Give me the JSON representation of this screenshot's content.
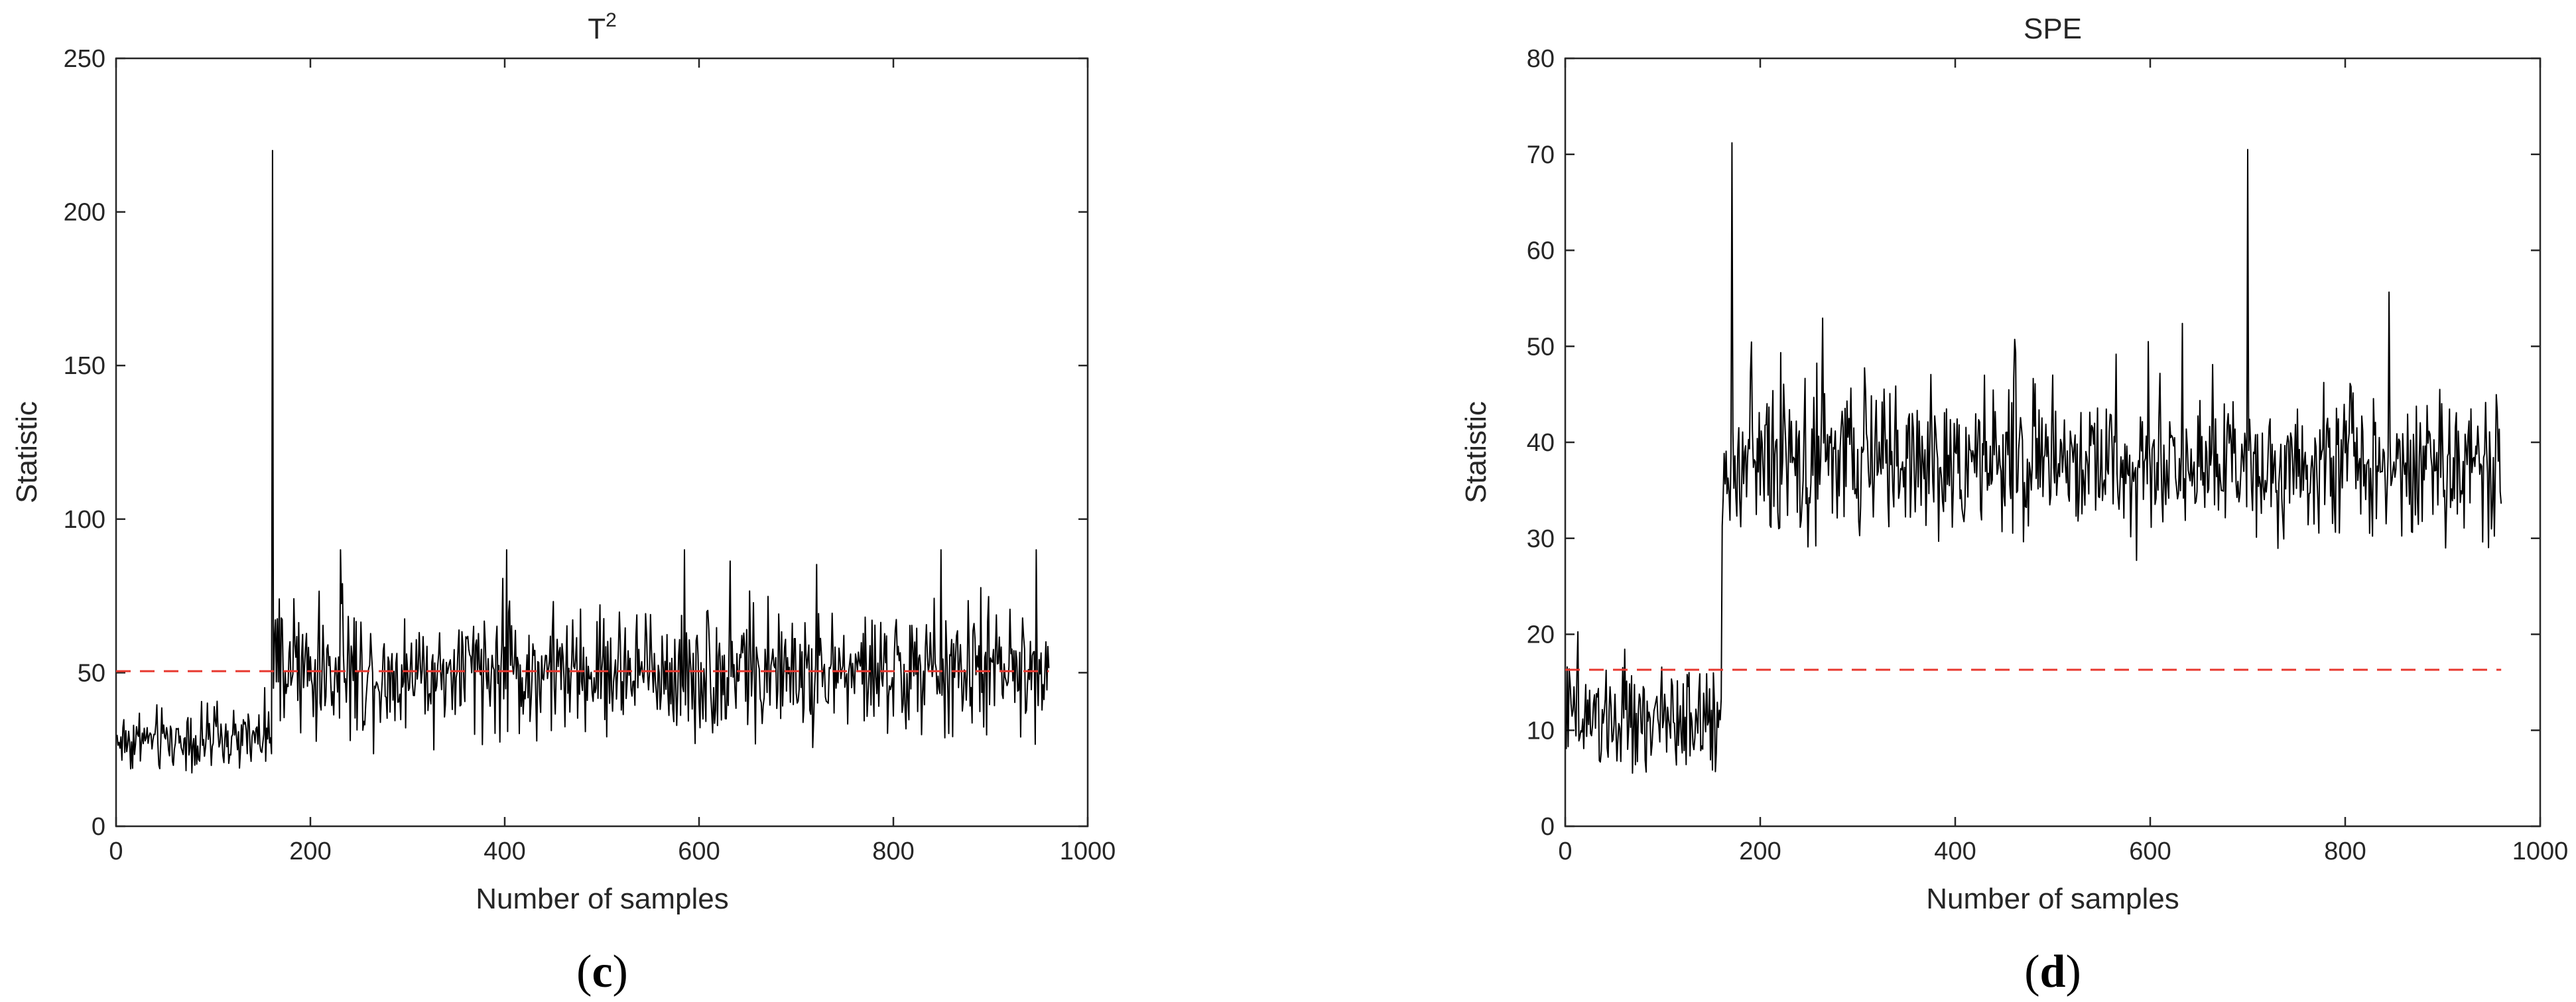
{
  "chart_data": [
    {
      "type": "line",
      "panel_label": "(c)",
      "panel_letter": "c",
      "title": "T",
      "title_superscript": "2",
      "xlabel": "Number of samples",
      "ylabel": "Statistic",
      "xlim": [
        0,
        1000
      ],
      "ylim": [
        0,
        250
      ],
      "xticks": [
        0,
        200,
        400,
        600,
        800,
        1000
      ],
      "yticks": [
        0,
        50,
        100,
        150,
        200,
        250
      ],
      "grid": false,
      "series": [
        {
          "line_color": "#000000",
          "n_samples": 960,
          "x_step": 1,
          "fault_start": 161,
          "spike": {
            "x": 161,
            "y": 220
          },
          "segments": [
            {
              "x_from": 1,
              "x_to": 160,
              "mean": 28,
              "spread": 14,
              "min": 10,
              "max": 58
            },
            {
              "x_from": 161,
              "x_to": 960,
              "mean": 50,
              "spread": 27,
              "min": 20,
              "max": 90
            }
          ]
        }
      ],
      "threshold": {
        "value": 50.5,
        "x_from": 0,
        "x_to": 960,
        "color": "#e8382f",
        "style": "dashed"
      }
    },
    {
      "type": "line",
      "panel_label": "(d)",
      "panel_letter": "d",
      "title": "SPE",
      "title_superscript": "",
      "xlabel": "Number of samples",
      "ylabel": "Statistic",
      "xlim": [
        0,
        1000
      ],
      "ylim": [
        0,
        80
      ],
      "xticks": [
        0,
        200,
        400,
        600,
        800,
        1000
      ],
      "yticks": [
        0,
        10,
        20,
        30,
        40,
        50,
        60,
        70,
        80
      ],
      "grid": false,
      "series": [
        {
          "line_color": "#000000",
          "n_samples": 960,
          "x_step": 1,
          "fault_start": 161,
          "spike": {
            "x": 171,
            "y": 71.2
          },
          "second_spike": {
            "x": 700,
            "y": 70.5
          },
          "segments": [
            {
              "x_from": 1,
              "x_to": 160,
              "mean": 11,
              "spread": 7,
              "min": 2.5,
              "max": 24.5
            },
            {
              "x_from": 161,
              "x_to": 960,
              "mean": 38,
              "spread": 10,
              "min": 20,
              "max": 63
            }
          ]
        }
      ],
      "threshold": {
        "value": 16.3,
        "x_from": 0,
        "x_to": 960,
        "color": "#e8382f",
        "style": "dashed"
      }
    }
  ]
}
